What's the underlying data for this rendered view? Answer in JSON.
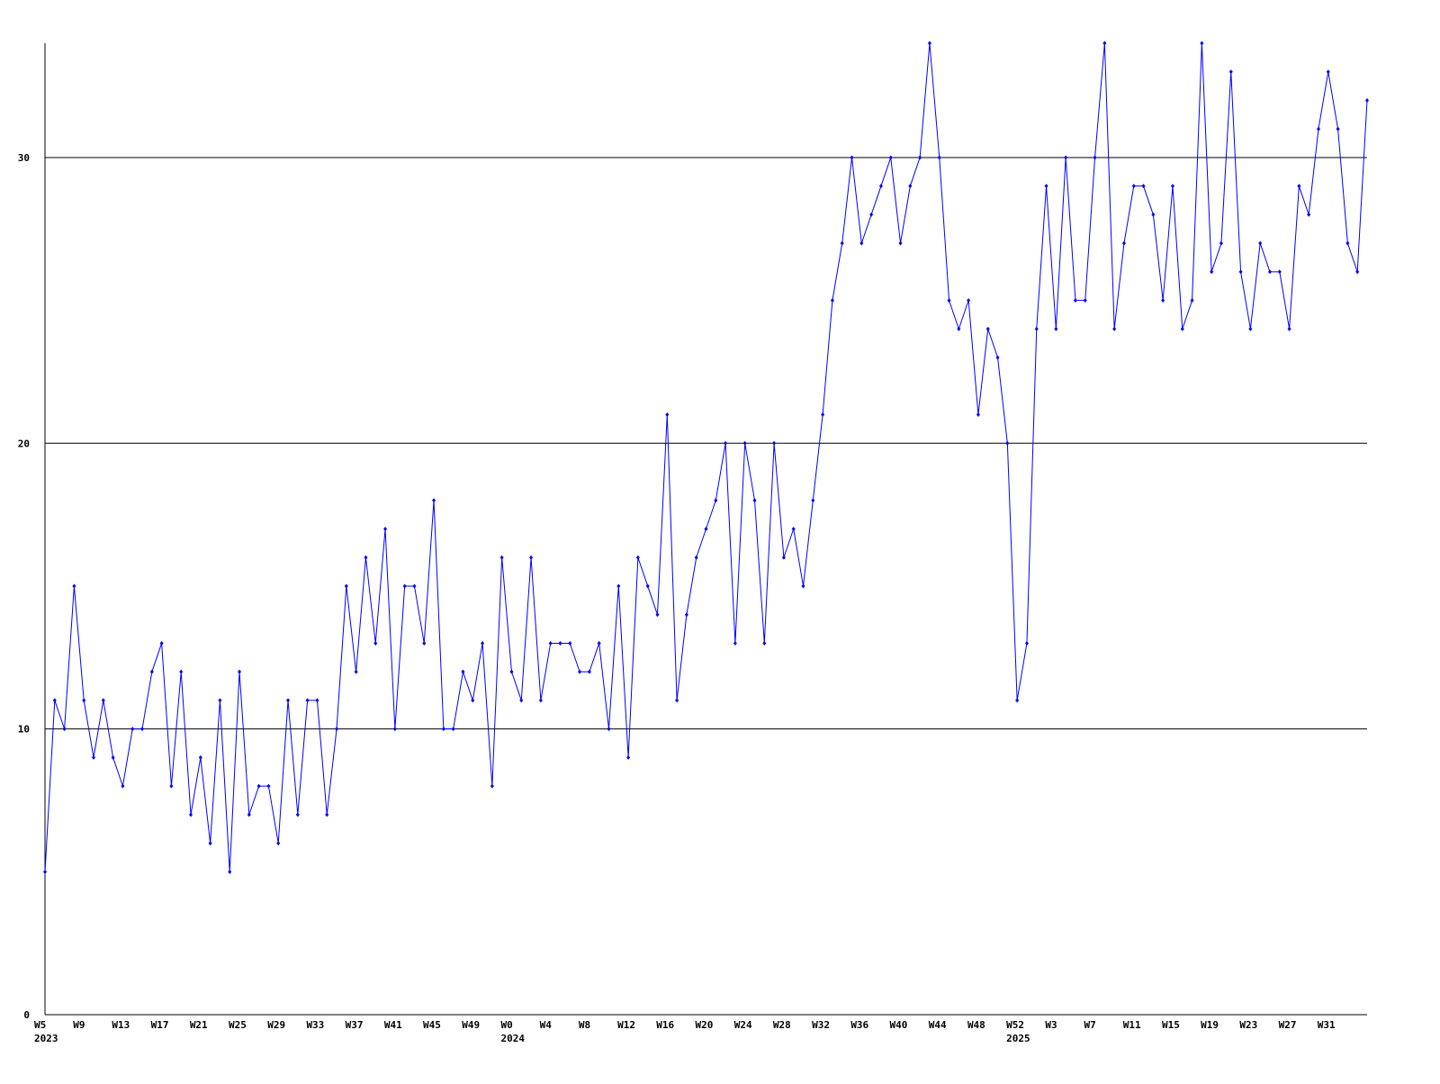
{
  "chart_data": {
    "type": "line",
    "categories": [
      "W5",
      null,
      null,
      null,
      "W9",
      null,
      null,
      null,
      "W13",
      null,
      null,
      null,
      "W17",
      null,
      null,
      null,
      "W21",
      null,
      null,
      null,
      "W25",
      null,
      null,
      null,
      "W29",
      null,
      null,
      null,
      "W33",
      null,
      null,
      null,
      "W37",
      null,
      null,
      null,
      "W41",
      null,
      null,
      null,
      "W45",
      null,
      null,
      null,
      "W49",
      null,
      null,
      null,
      "W0",
      null,
      null,
      null,
      "W4",
      null,
      null,
      null,
      "W8",
      null,
      null,
      null,
      "W12",
      null,
      null,
      null,
      "W16",
      null,
      null,
      null,
      "W20",
      null,
      null,
      null,
      "W24",
      null,
      null,
      null,
      "W28",
      null,
      null,
      null,
      "W32",
      null,
      null,
      null,
      "W36",
      null,
      null,
      null,
      "W40",
      null,
      null,
      null,
      "W44",
      null,
      null,
      null,
      "W48",
      null,
      null,
      null,
      "W52",
      null,
      null,
      null,
      "W3",
      null,
      null,
      null,
      "W7",
      null,
      null,
      null,
      "W11",
      null,
      null,
      null,
      "W15",
      null,
      null,
      null,
      "W19",
      null,
      null,
      null,
      "W23",
      null,
      null,
      null,
      "W27",
      null,
      null,
      null,
      "W31",
      null,
      null,
      null,
      null
    ],
    "years": [
      "2023",
      null,
      null,
      null,
      null,
      null,
      null,
      null,
      null,
      null,
      null,
      null,
      null,
      null,
      null,
      null,
      null,
      null,
      null,
      null,
      null,
      null,
      null,
      null,
      null,
      null,
      null,
      null,
      null,
      null,
      null,
      null,
      null,
      null,
      null,
      null,
      null,
      null,
      null,
      null,
      null,
      null,
      null,
      null,
      null,
      null,
      null,
      null,
      "2024",
      null,
      null,
      null,
      null,
      null,
      null,
      null,
      null,
      null,
      null,
      null,
      null,
      null,
      null,
      null,
      null,
      null,
      null,
      null,
      null,
      null,
      null,
      null,
      null,
      null,
      null,
      null,
      null,
      null,
      null,
      null,
      null,
      null,
      null,
      null,
      null,
      null,
      null,
      null,
      null,
      null,
      null,
      null,
      null,
      null,
      null,
      null,
      null,
      null,
      null,
      null,
      "2025",
      null,
      null,
      null,
      null,
      null,
      null,
      null,
      null,
      null,
      null,
      null,
      null,
      null,
      null,
      null,
      null,
      null,
      null,
      null,
      null,
      null,
      null,
      null,
      null,
      null,
      null,
      null,
      null,
      null,
      null,
      null,
      null,
      null,
      null,
      null,
      null
    ],
    "values": [
      5,
      11,
      10,
      15,
      11,
      9,
      11,
      9,
      8,
      10,
      10,
      12,
      13,
      8,
      12,
      7,
      9,
      6,
      11,
      5,
      12,
      7,
      8,
      8,
      6,
      11,
      7,
      11,
      11,
      7,
      10,
      15,
      12,
      16,
      13,
      17,
      10,
      15,
      15,
      13,
      18,
      10,
      10,
      12,
      11,
      13,
      8,
      16,
      12,
      11,
      16,
      11,
      13,
      13,
      13,
      12,
      12,
      13,
      10,
      15,
      9,
      16,
      15,
      14,
      21,
      11,
      14,
      16,
      17,
      18,
      20,
      13,
      20,
      18,
      13,
      20,
      16,
      17,
      15,
      18,
      21,
      25,
      27,
      30,
      27,
      28,
      29,
      30,
      27,
      29,
      30,
      34,
      30,
      25,
      24,
      25,
      21,
      24,
      23,
      20,
      11,
      13,
      24,
      29,
      24,
      30,
      25,
      25,
      30,
      34,
      24,
      27,
      29,
      29,
      28,
      25,
      29,
      24,
      25,
      34,
      26,
      27,
      33,
      26,
      24,
      27,
      26,
      26,
      24,
      29,
      28,
      31,
      33,
      31,
      27,
      26,
      32
    ],
    "color": "#0000ff",
    "ylim": [
      0,
      34
    ],
    "yticks": [
      0,
      10,
      20,
      30
    ],
    "grid": true
  }
}
